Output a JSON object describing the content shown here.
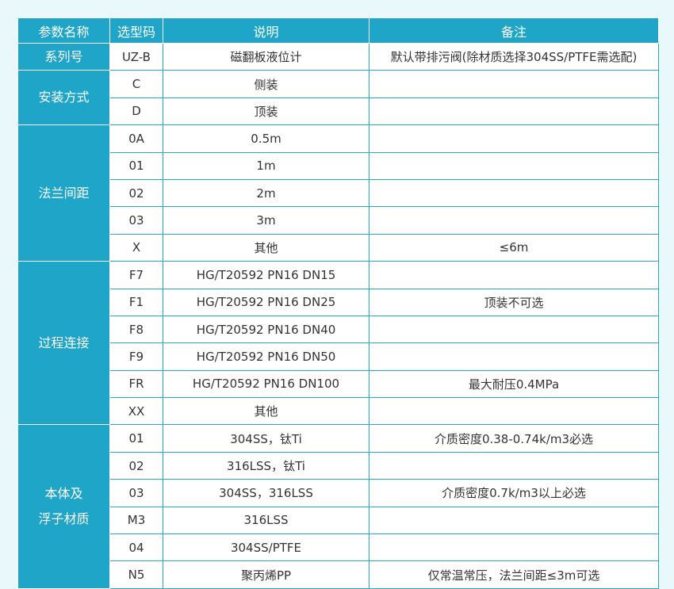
{
  "table": {
    "header": [
      "参数名称",
      "选型码",
      "说明",
      "备注"
    ],
    "groups": [
      {
        "label": "系列号",
        "rows": [
          {
            "code": "UZ-B",
            "desc": "磁翻板液位计",
            "note": "默认带排污阀(除材质选择304SS/PTFE需选配)"
          }
        ]
      },
      {
        "label": "安装方式",
        "rows": [
          {
            "code": "C",
            "desc": "侧装"
          },
          {
            "code": "D",
            "desc": "顶装"
          }
        ]
      },
      {
        "label": "法兰间距",
        "rows": [
          {
            "code": "0A",
            "desc": "0.5m"
          },
          {
            "code": "01",
            "desc": "1m"
          },
          {
            "code": "02",
            "desc": "2m"
          },
          {
            "code": "03",
            "desc": "3m"
          },
          {
            "code": "X",
            "desc": "其他",
            "note": "≤6m"
          }
        ]
      },
      {
        "label": "过程连接",
        "rows": [
          {
            "code": "F7",
            "desc": "HG/T20592 PN16 DN15"
          },
          {
            "code": "F1",
            "desc": "HG/T20592 PN16 DN25",
            "note": "顶装不可选"
          },
          {
            "code": "F8",
            "desc": "HG/T20592 PN16 DN40"
          },
          {
            "code": "F9",
            "desc": "HG/T20592 PN16 DN50"
          },
          {
            "code": "FR",
            "desc": "HG/T20592 PN16 DN100",
            "note": "最大耐压0.4MPa"
          },
          {
            "code": "XX",
            "desc": "其他"
          }
        ]
      },
      {
        "label": "本体及\n浮子材质",
        "rows": [
          {
            "code": "01",
            "desc": "304SS，钛Ti",
            "note": "介质密度0.38-0.74k/m3必选"
          },
          {
            "code": "02",
            "desc": "316LSS，钛Ti"
          },
          {
            "code": "03",
            "desc": "304SS，316LSS",
            "note": "介质密度0.7k/m3以上必选"
          },
          {
            "code": "M3",
            "desc": "316LSS"
          },
          {
            "code": "04",
            "desc": "304SS/PTFE"
          },
          {
            "code": "N5",
            "desc": "聚丙烯PP",
            "note": "仅常温常压，法兰间距≤3m可选"
          }
        ]
      }
    ]
  }
}
